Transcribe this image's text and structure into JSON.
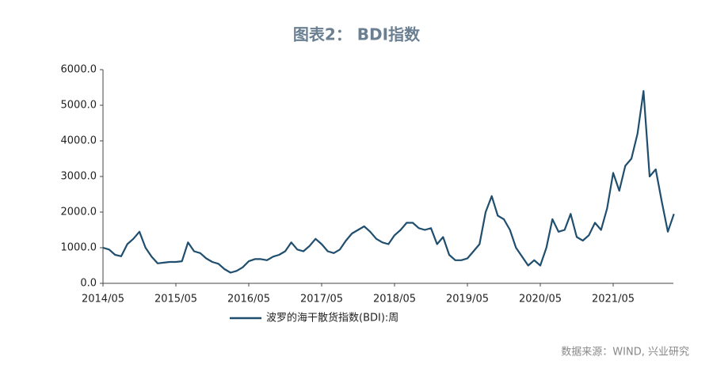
{
  "chart_data": {
    "type": "line",
    "title": "图表2： BDI指数",
    "source": "数据来源：WIND, 兴业研究",
    "x": [
      "2014/05",
      "2014/06",
      "2014/07",
      "2014/08",
      "2014/09",
      "2014/10",
      "2014/11",
      "2014/12",
      "2015/01",
      "2015/02",
      "2015/03",
      "2015/04",
      "2015/05",
      "2015/06",
      "2015/07",
      "2015/08",
      "2015/09",
      "2015/10",
      "2015/11",
      "2015/12",
      "2016/01",
      "2016/02",
      "2016/03",
      "2016/04",
      "2016/05",
      "2016/06",
      "2016/07",
      "2016/08",
      "2016/09",
      "2016/10",
      "2016/11",
      "2016/12",
      "2017/01",
      "2017/02",
      "2017/03",
      "2017/04",
      "2017/05",
      "2017/06",
      "2017/07",
      "2017/08",
      "2017/09",
      "2017/10",
      "2017/11",
      "2017/12",
      "2018/01",
      "2018/02",
      "2018/03",
      "2018/04",
      "2018/05",
      "2018/06",
      "2018/07",
      "2018/08",
      "2018/09",
      "2018/10",
      "2018/11",
      "2018/12",
      "2019/01",
      "2019/02",
      "2019/03",
      "2019/04",
      "2019/05",
      "2019/06",
      "2019/07",
      "2019/08",
      "2019/09",
      "2019/10",
      "2019/11",
      "2019/12",
      "2020/01",
      "2020/02",
      "2020/03",
      "2020/04",
      "2020/05",
      "2020/06",
      "2020/07",
      "2020/08",
      "2020/09",
      "2020/10",
      "2020/11",
      "2020/12",
      "2021/01",
      "2021/02",
      "2021/03",
      "2021/04",
      "2021/05",
      "2021/06",
      "2021/07",
      "2021/08",
      "2021/09",
      "2021/10",
      "2021/11",
      "2021/12",
      "2022/01",
      "2022/02",
      "2022/03"
    ],
    "series": [
      {
        "name": "波罗的海干散货指数(BDI):周",
        "color": "#1f4e6e",
        "values": [
          1000,
          950,
          800,
          760,
          1100,
          1250,
          1450,
          1000,
          750,
          560,
          580,
          600,
          600,
          620,
          1150,
          900,
          850,
          700,
          600,
          550,
          400,
          300,
          350,
          450,
          620,
          680,
          680,
          650,
          750,
          800,
          900,
          1150,
          950,
          900,
          1050,
          1250,
          1100,
          900,
          850,
          950,
          1200,
          1400,
          1500,
          1600,
          1450,
          1250,
          1150,
          1100,
          1350,
          1500,
          1700,
          1700,
          1550,
          1500,
          1550,
          1100,
          1300,
          800,
          650,
          650,
          700,
          900,
          1100,
          2000,
          2450,
          1900,
          1800,
          1500,
          1000,
          750,
          500,
          650,
          500,
          1000,
          1800,
          1450,
          1500,
          1950,
          1300,
          1200,
          1350,
          1700,
          1500,
          2100,
          3100,
          2600,
          3300,
          3500,
          4200,
          5400,
          3000,
          3200,
          2300,
          1450,
          1950
        ]
      }
    ],
    "xticks": [
      "2014/05",
      "2015/05",
      "2016/05",
      "2017/05",
      "2018/05",
      "2019/05",
      "2020/05",
      "2021/05"
    ],
    "ylim": [
      0,
      6000
    ],
    "yticks": [
      {
        "value": 0,
        "label": "0.0"
      },
      {
        "value": 1000,
        "label": "1000.0"
      },
      {
        "value": 2000,
        "label": "2000.0"
      },
      {
        "value": 3000,
        "label": "3000.0"
      },
      {
        "value": 4000,
        "label": "4000.0"
      },
      {
        "value": 5000,
        "label": "5000.0"
      },
      {
        "value": 6000,
        "label": "6000.0"
      }
    ],
    "legend": "bottom"
  }
}
